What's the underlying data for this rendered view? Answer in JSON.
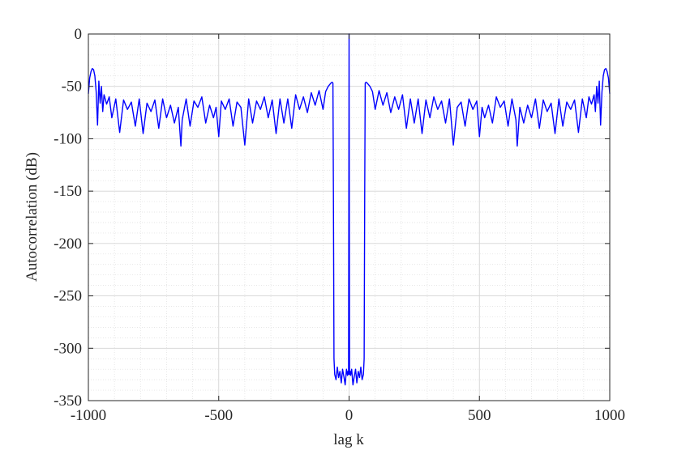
{
  "chart_data": {
    "type": "line",
    "title": "",
    "xlabel": "lag k",
    "ylabel": "Autocorrelation (dB)",
    "xlim": [
      -1000,
      1000
    ],
    "ylim": [
      -350,
      0
    ],
    "xticks": [
      -1000,
      -500,
      0,
      500,
      1000
    ],
    "xtick_labels": [
      "-1000",
      "-500",
      "0",
      "500",
      "1000"
    ],
    "yticks": [
      0,
      -50,
      -100,
      -150,
      -200,
      -250,
      -300,
      -350
    ],
    "ytick_labels": [
      "0",
      "-50",
      "-100",
      "-150",
      "-200",
      "-250",
      "-300",
      "-350"
    ],
    "grid": true,
    "minor_grid": true,
    "line_color": "#0000ff",
    "series": [
      {
        "x": [
          -1000,
          -995,
          -990,
          -985,
          -980,
          -975,
          -970,
          -965,
          -960,
          -955,
          -950,
          -945,
          -940,
          -930,
          -920,
          -910,
          -895,
          -880,
          -865,
          -850,
          -835,
          -820,
          -805,
          -790,
          -775,
          -760,
          -745,
          -730,
          -715,
          -700,
          -685,
          -670,
          -655,
          -645,
          -640,
          -625,
          -610,
          -595,
          -580,
          -565,
          -550,
          -535,
          -520,
          -510,
          -500,
          -490,
          -475,
          -460,
          -445,
          -430,
          -415,
          -400,
          -385,
          -370,
          -355,
          -340,
          -325,
          -310,
          -295,
          -280,
          -265,
          -250,
          -235,
          -220,
          -205,
          -190,
          -175,
          -160,
          -145,
          -130,
          -115,
          -100,
          -90,
          -80,
          -70,
          -65,
          -62,
          -60,
          -58,
          -55,
          -50,
          -45,
          -40,
          -35,
          -30,
          -25,
          -20,
          -15,
          -10,
          -6,
          -4,
          -2,
          0,
          2,
          4,
          6,
          10,
          15,
          20,
          25,
          30,
          35,
          40,
          45,
          50,
          55,
          58,
          60,
          62,
          65,
          70,
          80,
          90,
          100,
          115,
          130,
          145,
          160,
          175,
          190,
          205,
          220,
          235,
          250,
          265,
          280,
          295,
          310,
          325,
          340,
          355,
          370,
          385,
          400,
          415,
          430,
          445,
          460,
          475,
          490,
          500,
          510,
          520,
          535,
          550,
          565,
          580,
          595,
          610,
          625,
          640,
          645,
          655,
          670,
          685,
          700,
          715,
          730,
          745,
          760,
          775,
          790,
          805,
          820,
          835,
          850,
          865,
          880,
          895,
          910,
          920,
          930,
          940,
          945,
          950,
          955,
          960,
          965,
          970,
          975,
          980,
          985,
          990,
          995,
          1000
        ],
        "y": [
          -57,
          -42,
          -36,
          -33,
          -34,
          -40,
          -55,
          -87,
          -45,
          -66,
          -50,
          -74,
          -58,
          -67,
          -60,
          -80,
          -62,
          -94,
          -63,
          -72,
          -65,
          -88,
          -62,
          -95,
          -66,
          -74,
          -63,
          -90,
          -62,
          -80,
          -68,
          -85,
          -70,
          -107,
          -82,
          -62,
          -88,
          -64,
          -70,
          -60,
          -85,
          -68,
          -80,
          -70,
          -98,
          -64,
          -72,
          -62,
          -88,
          -65,
          -70,
          -106,
          -62,
          -85,
          -64,
          -72,
          -60,
          -80,
          -63,
          -95,
          -62,
          -85,
          -62,
          -90,
          -58,
          -72,
          -60,
          -75,
          -56,
          -68,
          -54,
          -72,
          -55,
          -50,
          -47,
          -46,
          -47,
          -150,
          -310,
          -325,
          -330,
          -318,
          -328,
          -322,
          -333,
          -320,
          -327,
          -335,
          -320,
          -326,
          -322,
          -325,
          0,
          -325,
          -322,
          -326,
          -320,
          -335,
          -327,
          -320,
          -333,
          -322,
          -328,
          -318,
          -330,
          -325,
          -310,
          -150,
          -47,
          -46,
          -47,
          -50,
          -55,
          -72,
          -54,
          -68,
          -56,
          -75,
          -60,
          -72,
          -58,
          -90,
          -62,
          -85,
          -62,
          -95,
          -63,
          -80,
          -60,
          -72,
          -64,
          -85,
          -62,
          -106,
          -70,
          -65,
          -88,
          -62,
          -72,
          -64,
          -98,
          -70,
          -80,
          -68,
          -85,
          -60,
          -70,
          -64,
          -88,
          -62,
          -82,
          -107,
          -70,
          -85,
          -68,
          -80,
          -62,
          -90,
          -63,
          -74,
          -66,
          -95,
          -62,
          -88,
          -65,
          -72,
          -63,
          -94,
          -62,
          -80,
          -60,
          -67,
          -58,
          -74,
          -50,
          -66,
          -45,
          -87,
          -55,
          -40,
          -34,
          -33,
          -36,
          -42,
          -57
        ]
      }
    ]
  }
}
